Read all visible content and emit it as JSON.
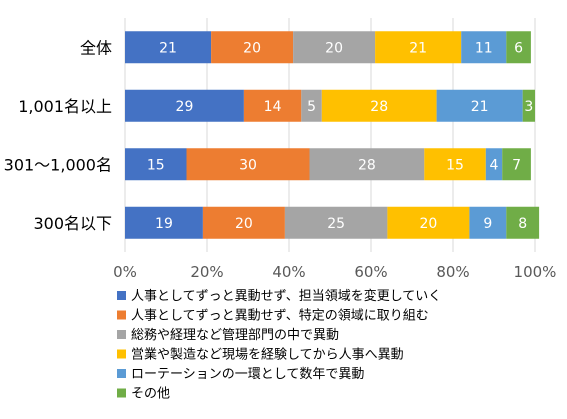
{
  "chart_data": {
    "type": "bar",
    "orientation": "horizontal",
    "stacked": true,
    "categories": [
      "全体",
      "1,001名以上",
      "301～1,000名",
      "300名以下"
    ],
    "series": [
      {
        "name": "人事としてずっと異動せず、担当領域を変更していく",
        "color": "#4472C4",
        "values": [
          21,
          29,
          15,
          19
        ]
      },
      {
        "name": "人事としてずっと異動せず、特定の領域に取り組む",
        "color": "#ED7D31",
        "values": [
          20,
          14,
          30,
          20
        ]
      },
      {
        "name": "総務や経理など管理部門の中で異動",
        "color": "#A5A5A5",
        "values": [
          20,
          5,
          28,
          25
        ]
      },
      {
        "name": "営業や製造など現場を経験してから人事へ異動",
        "color": "#FFC000",
        "values": [
          21,
          28,
          15,
          20
        ]
      },
      {
        "name": "ローテーションの一環として数年で異動",
        "color": "#5B9BD5",
        "values": [
          11,
          21,
          4,
          9
        ]
      },
      {
        "name": "その他",
        "color": "#70AD47",
        "values": [
          6,
          3,
          7,
          8
        ]
      }
    ],
    "xlim": [
      0,
      100
    ],
    "xticks": [
      "0%",
      "20%",
      "40%",
      "60%",
      "80%",
      "100%"
    ],
    "grid": true,
    "legend_position": "bottom"
  }
}
